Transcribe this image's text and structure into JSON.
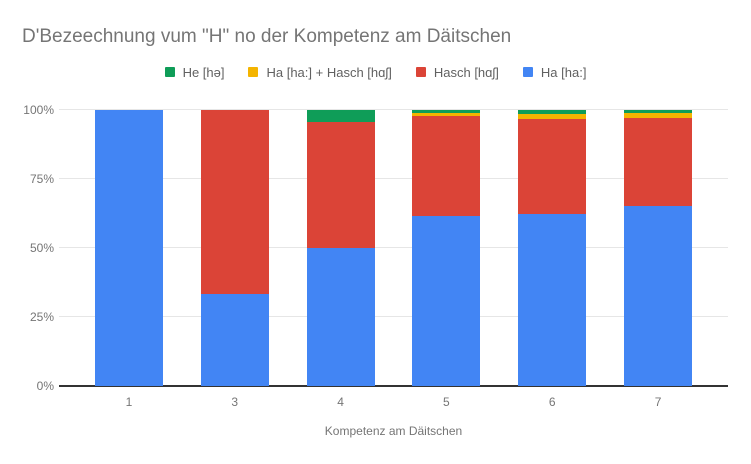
{
  "chart_data": {
    "type": "bar",
    "stacked": true,
    "stack_unit": "percent",
    "title": "D'Bezeechnung vum \"H\" no der Kompetenz am Däitschen",
    "xlabel": "Kompetenz am Däitschen",
    "ylabel": "",
    "categories": [
      "1",
      "3",
      "4",
      "5",
      "6",
      "7"
    ],
    "series": [
      {
        "name": "Ha [ha:]",
        "color": "#4285F4",
        "values": [
          100,
          33.3,
          50,
          61.7,
          62.5,
          65.2
        ]
      },
      {
        "name": "Hasch [hɑʃ]",
        "color": "#DB4437",
        "values": [
          0,
          66.7,
          45.5,
          36.1,
          34.2,
          31.8
        ]
      },
      {
        "name": "Ha [ha:] + Hasch [hɑʃ]",
        "color": "#F4B400",
        "values": [
          0,
          0,
          0,
          1.1,
          1.8,
          2.0
        ]
      },
      {
        "name": "He [hə]",
        "color": "#0F9D58",
        "values": [
          0,
          0,
          4.5,
          1.1,
          1.5,
          1.0
        ]
      }
    ],
    "legend_order": [
      "He [hə]",
      "Ha [ha:] + Hasch [hɑʃ]",
      "Hasch [hɑʃ]",
      "Ha [ha:]"
    ],
    "legend_position": "top",
    "y_ticks": [
      "0%",
      "25%",
      "50%",
      "75%",
      "100%"
    ],
    "ylim": [
      0,
      100
    ],
    "grid": true,
    "colors": {
      "title_text": "#757575",
      "axis_text": "#757575",
      "legend_text": "#616161",
      "gridline": "#e6e6e6",
      "axis_line": "#333333",
      "background": "#ffffff"
    }
  }
}
